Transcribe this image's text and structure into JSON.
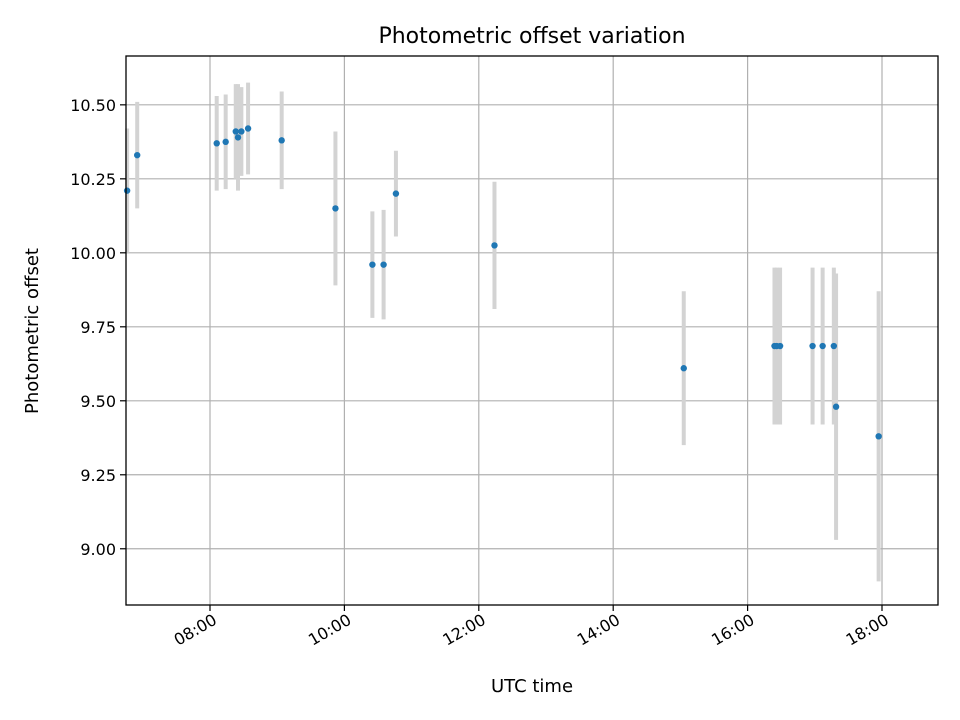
{
  "chart_data": {
    "type": "scatter",
    "title": "Photometric offset variation",
    "xlabel": "UTC time",
    "ylabel": "Photometric offset",
    "xlim": [
      "06:45",
      "18:50"
    ],
    "ylim": [
      8.81,
      10.665
    ],
    "grid": true,
    "x_ticks": [
      "08:00",
      "10:00",
      "12:00",
      "14:00",
      "16:00",
      "18:00"
    ],
    "y_ticks": [
      "9.00",
      "9.25",
      "9.50",
      "9.75",
      "10.00",
      "10.25",
      "10.50"
    ],
    "colors": {
      "point": "#1f77b4",
      "errorbar": "#d3d3d3"
    },
    "points": [
      {
        "x": "06:46",
        "y": 10.21,
        "err": 0.21
      },
      {
        "x": "06:55",
        "y": 10.33,
        "err": 0.18
      },
      {
        "x": "08:06",
        "y": 10.37,
        "err": 0.16
      },
      {
        "x": "08:14",
        "y": 10.375,
        "err": 0.16
      },
      {
        "x": "08:23",
        "y": 10.41,
        "err": 0.16
      },
      {
        "x": "08:25",
        "y": 10.39,
        "err": 0.18
      },
      {
        "x": "08:28",
        "y": 10.41,
        "err": 0.15
      },
      {
        "x": "08:34",
        "y": 10.42,
        "err": 0.155
      },
      {
        "x": "09:04",
        "y": 10.38,
        "err": 0.165
      },
      {
        "x": "09:52",
        "y": 10.15,
        "err": 0.26
      },
      {
        "x": "10:25",
        "y": 9.96,
        "err": 0.18
      },
      {
        "x": "10:35",
        "y": 9.96,
        "err": 0.185
      },
      {
        "x": "10:46",
        "y": 10.2,
        "err": 0.145
      },
      {
        "x": "12:14",
        "y": 10.025,
        "err": 0.215
      },
      {
        "x": "15:03",
        "y": 9.61,
        "err": 0.26
      },
      {
        "x": "16:24",
        "y": 9.685,
        "err": 0.265
      },
      {
        "x": "16:26",
        "y": 9.685,
        "err": 0.265
      },
      {
        "x": "16:29",
        "y": 9.685,
        "err": 0.265
      },
      {
        "x": "16:58",
        "y": 9.685,
        "err": 0.265
      },
      {
        "x": "17:07",
        "y": 9.685,
        "err": 0.265
      },
      {
        "x": "17:17",
        "y": 9.685,
        "err": 0.265
      },
      {
        "x": "17:19",
        "y": 9.48,
        "err": 0.45
      },
      {
        "x": "17:57",
        "y": 9.38,
        "err": 0.49
      }
    ]
  }
}
